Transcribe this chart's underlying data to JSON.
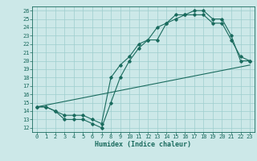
{
  "xlabel": "Humidex (Indice chaleur)",
  "xlim": [
    -0.5,
    23.5
  ],
  "ylim": [
    11.5,
    26.5
  ],
  "xticks": [
    0,
    1,
    2,
    3,
    4,
    5,
    6,
    7,
    8,
    9,
    10,
    11,
    12,
    13,
    14,
    15,
    16,
    17,
    18,
    19,
    20,
    21,
    22,
    23
  ],
  "yticks": [
    12,
    13,
    14,
    15,
    16,
    17,
    18,
    19,
    20,
    21,
    22,
    23,
    24,
    25,
    26
  ],
  "bg_color": "#cce8e8",
  "grid_color": "#9ecece",
  "line_color": "#1a6b5e",
  "line1_x": [
    0,
    1,
    2,
    3,
    4,
    5,
    6,
    7,
    8,
    9,
    10,
    11,
    12,
    13,
    14,
    15,
    16,
    17,
    18,
    19,
    20,
    21,
    22,
    23
  ],
  "line1_y": [
    14.5,
    14.5,
    14.0,
    13.0,
    13.0,
    13.0,
    12.5,
    12.0,
    15.0,
    18.0,
    20.0,
    21.5,
    22.5,
    24.0,
    24.5,
    25.5,
    25.5,
    26.0,
    26.0,
    25.0,
    25.0,
    23.0,
    20.0,
    20.0
  ],
  "line2_x": [
    0,
    1,
    2,
    3,
    4,
    5,
    6,
    7,
    8,
    9,
    10,
    11,
    12,
    13,
    14,
    15,
    16,
    17,
    18,
    19,
    20,
    21,
    22,
    23
  ],
  "line2_y": [
    14.5,
    14.5,
    14.0,
    13.5,
    13.5,
    13.5,
    13.0,
    12.5,
    18.0,
    19.5,
    20.5,
    22.0,
    22.5,
    22.5,
    24.5,
    25.0,
    25.5,
    25.5,
    25.5,
    24.5,
    24.5,
    22.5,
    20.5,
    20.0
  ],
  "line3_x": [
    0,
    23
  ],
  "line3_y": [
    14.5,
    19.5
  ],
  "tick_fontsize": 5.0,
  "xlabel_fontsize": 6.0
}
